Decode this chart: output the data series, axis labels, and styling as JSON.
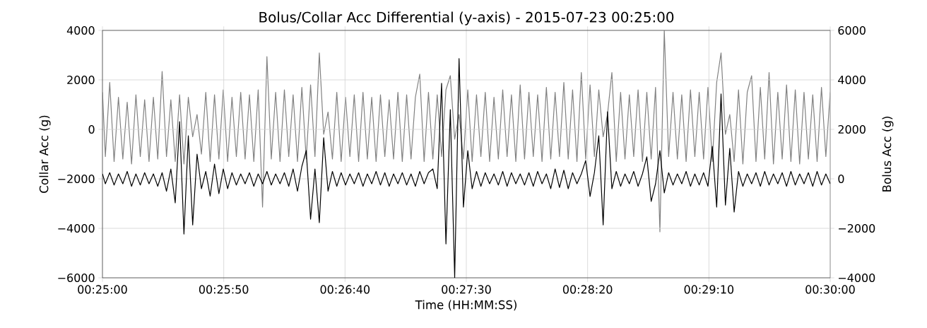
{
  "chart_data": {
    "type": "line",
    "title": "Bolus/Collar Acc Differential (y-axis) - 2015-07-23 00:25:00",
    "xlabel": "Time (HH:MM:SS)",
    "ylabel": "Collar Acc (g)",
    "y2label": "Bolus Acc (g)",
    "xlim": [
      0.416667,
      0.5
    ],
    "xticks": [
      {
        "value": 0.416667,
        "label": "00:25:00"
      },
      {
        "value": 0.430556,
        "label": "00:25:50"
      },
      {
        "value": 0.444444,
        "label": "00:26:40"
      },
      {
        "value": 0.458333,
        "label": "00:27:30"
      },
      {
        "value": 0.472222,
        "label": "00:28:20"
      },
      {
        "value": 0.486111,
        "label": "00:29:10"
      },
      {
        "value": 0.5,
        "label": "00:30:00"
      }
    ],
    "ylim": [
      -6000,
      4000
    ],
    "yticks": [
      {
        "value": -6000,
        "label": "−6000"
      },
      {
        "value": -4000,
        "label": "−4000"
      },
      {
        "value": -2000,
        "label": "−2000"
      },
      0,
      2000,
      4000
    ],
    "y2lim": [
      -4000,
      6000
    ],
    "y2ticks": [
      {
        "value": -4000,
        "label": "−4000"
      },
      {
        "value": -2000,
        "label": "−2000"
      },
      0,
      2000,
      4000,
      6000
    ],
    "grid": true,
    "marker": "none",
    "line_style": "solid",
    "x": [
      0.41667,
      0.417,
      0.4175,
      0.418,
      0.4185,
      0.419,
      0.4195,
      0.42,
      0.4205,
      0.421,
      0.4215,
      0.422,
      0.4225,
      0.423,
      0.4235,
      0.424,
      0.4245,
      0.425,
      0.4255,
      0.426,
      0.4265,
      0.427,
      0.4275,
      0.428,
      0.4285,
      0.429,
      0.4295,
      0.43,
      0.4305,
      0.431,
      0.4315,
      0.432,
      0.4325,
      0.433,
      0.4335,
      0.434,
      0.4345,
      0.435,
      0.4355,
      0.436,
      0.4365,
      0.437,
      0.4375,
      0.438,
      0.4385,
      0.439,
      0.4395,
      0.44,
      0.4405,
      0.441,
      0.4415,
      0.442,
      0.4425,
      0.443,
      0.4435,
      0.444,
      0.4445,
      0.445,
      0.4455,
      0.446,
      0.4465,
      0.447,
      0.4475,
      0.448,
      0.4485,
      0.449,
      0.4495,
      0.45,
      0.4505,
      0.451,
      0.4515,
      0.452,
      0.4525,
      0.453,
      0.4535,
      0.454,
      0.4545,
      0.455,
      0.4555,
      0.456,
      0.4565,
      0.457,
      0.4575,
      0.458,
      0.4585,
      0.459,
      0.4595,
      0.46,
      0.4605,
      0.461,
      0.4615,
      0.462,
      0.4625,
      0.463,
      0.4635,
      0.464,
      0.4645,
      0.465,
      0.4655,
      0.466,
      0.4665,
      0.467,
      0.4675,
      0.468,
      0.4685,
      0.469,
      0.4695,
      0.47,
      0.4705,
      0.471,
      0.4715,
      0.472,
      0.4725,
      0.473,
      0.4735,
      0.474,
      0.4745,
      0.475,
      0.4755,
      0.476,
      0.4765,
      0.477,
      0.4775,
      0.478,
      0.4785,
      0.479,
      0.4795,
      0.48,
      0.4805,
      0.481,
      0.4815,
      0.482,
      0.4825,
      0.483,
      0.4835,
      0.484,
      0.4845,
      0.485,
      0.4855,
      0.486,
      0.4865,
      0.487,
      0.4875,
      0.488,
      0.4885,
      0.489,
      0.4895,
      0.49,
      0.4905,
      0.491,
      0.4915,
      0.492,
      0.4925,
      0.493,
      0.4935,
      0.494,
      0.4945,
      0.495,
      0.4955,
      0.496,
      0.4965,
      0.497,
      0.4975,
      0.498,
      0.4985,
      0.499,
      0.4995,
      0.5
    ],
    "series": [
      {
        "color": "#808080",
        "axis": "y2",
        "values": [
          3500,
          900,
          3900,
          700,
          3300,
          800,
          3100,
          600,
          3400,
          900,
          3200,
          700,
          3300,
          800,
          4340,
          900,
          3200,
          700,
          3400,
          600,
          3300,
          1700,
          2600,
          1000,
          3500,
          700,
          3400,
          800,
          3600,
          700,
          3300,
          900,
          3500,
          800,
          3400,
          700,
          3600,
          -1140,
          4940,
          800,
          3500,
          700,
          3600,
          900,
          3400,
          700,
          3700,
          800,
          3800,
          900,
          5090,
          1800,
          2700,
          800,
          3500,
          700,
          3300,
          900,
          3400,
          700,
          3500,
          800,
          3300,
          700,
          3400,
          900,
          3200,
          800,
          3500,
          700,
          3400,
          800,
          3300,
          4230,
          700,
          3500,
          800,
          3400,
          900,
          3600,
          4170,
          1600,
          2600,
          800,
          3600,
          700,
          3400,
          900,
          3500,
          700,
          3300,
          800,
          3600,
          900,
          3400,
          700,
          3800,
          800,
          3500,
          900,
          3400,
          700,
          3700,
          800,
          3500,
          900,
          3900,
          800,
          3600,
          700,
          4300,
          800,
          3800,
          900,
          3600,
          1700,
          2600,
          4300,
          700,
          3500,
          800,
          3400,
          900,
          3600,
          700,
          3500,
          800,
          3700,
          -2140,
          6000,
          900,
          3500,
          800,
          3400,
          700,
          3600,
          900,
          3500,
          800,
          3700,
          700,
          3900,
          5090,
          1800,
          2600,
          700,
          3600,
          600,
          3500,
          4170,
          700,
          3700,
          800,
          4300,
          600,
          3500,
          800,
          3800,
          700,
          3600,
          600,
          3500,
          800,
          3400,
          700,
          3700,
          900,
          3500
        ]
      },
      {
        "color": "#000000",
        "values": [
          -1800,
          -2200,
          -1750,
          -2250,
          -1800,
          -2200,
          -1700,
          -2300,
          -1800,
          -2250,
          -1750,
          -2200,
          -1800,
          -2300,
          -1750,
          -2500,
          -1600,
          -2970,
          314,
          -4230,
          -260,
          -3860,
          -1000,
          -2400,
          -1700,
          -2700,
          -1400,
          -2600,
          -1600,
          -2400,
          -1750,
          -2250,
          -1800,
          -2200,
          -1750,
          -2300,
          -1800,
          -2200,
          -1700,
          -2250,
          -1800,
          -2200,
          -1750,
          -2300,
          -1600,
          -2500,
          -1500,
          -860,
          -3630,
          -1600,
          -3770,
          -340,
          -2500,
          -1700,
          -2300,
          -1750,
          -2250,
          -1800,
          -2200,
          -1750,
          -2300,
          -1800,
          -2200,
          -1700,
          -2250,
          -1750,
          -2300,
          -1800,
          -2200,
          -1750,
          -2250,
          -1800,
          -2300,
          -1700,
          -2200,
          -1750,
          -1600,
          -2400,
          1860,
          -4630,
          800,
          -6000,
          2860,
          -3140,
          -860,
          -2400,
          -1700,
          -2300,
          -1750,
          -2200,
          -1800,
          -2250,
          -1700,
          -2300,
          -1750,
          -2200,
          -1800,
          -2250,
          -1750,
          -2300,
          -1700,
          -2200,
          -1800,
          -2400,
          -1600,
          -2350,
          -1650,
          -2400,
          -1750,
          -2200,
          -1800,
          -1260,
          -2710,
          -1750,
          -257,
          -3860,
          710,
          -2400,
          -1700,
          -2300,
          -1800,
          -2200,
          -1700,
          -2300,
          -1800,
          -1110,
          -2910,
          -2200,
          -860,
          -2570,
          -1750,
          -2250,
          -1800,
          -2200,
          -1700,
          -2300,
          -1800,
          -2250,
          -1750,
          -2300,
          -690,
          -3140,
          1430,
          -3060,
          -770,
          -3340,
          -1700,
          -2300,
          -1800,
          -2200,
          -1750,
          -2300,
          -1700,
          -2250,
          -1800,
          -2200,
          -1750,
          -2300,
          -1700,
          -2250,
          -1800,
          -2200,
          -1750,
          -2300,
          -1700,
          -2250,
          -1800,
          -2200
        ]
      }
    ]
  }
}
